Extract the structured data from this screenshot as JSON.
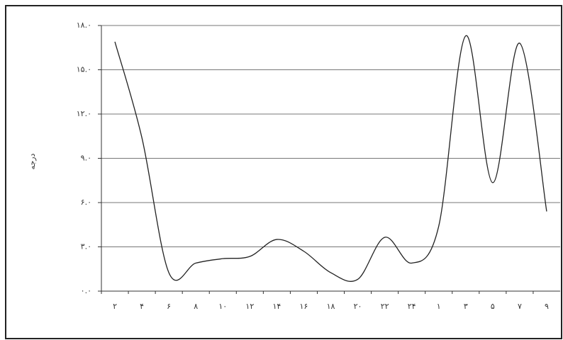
{
  "chart_data": {
    "type": "line",
    "y_label": "درجه",
    "categories": [
      "۲",
      "۴",
      "۶",
      "۸",
      "۱۰",
      "۱۲",
      "۱۴",
      "۱۶",
      "۱۸",
      "۲۰",
      "۲۲",
      "۲۴",
      "۱",
      "۳",
      "۵",
      "۷",
      "۹"
    ],
    "series": [
      {
        "name": "درجه",
        "color": "#222",
        "values": [
          16.9,
          10.4,
          1.25,
          1.9,
          2.2,
          2.35,
          3.5,
          2.7,
          1.25,
          0.8,
          3.65,
          1.9,
          4.4,
          17.3,
          7.35,
          16.8,
          5.4
        ]
      }
    ],
    "ylim": [
      0,
      18
    ],
    "yticks": [
      {
        "value": 0,
        "label": "۰.۰"
      },
      {
        "value": 3,
        "label": "۳.۰"
      },
      {
        "value": 6,
        "label": "۶.۰"
      },
      {
        "value": 9,
        "label": "۹.۰"
      },
      {
        "value": 12,
        "label": "۱۲.۰"
      },
      {
        "value": 15,
        "label": "۱۵.۰"
      },
      {
        "value": 18,
        "label": "۱۸.۰"
      }
    ],
    "grid": true
  }
}
